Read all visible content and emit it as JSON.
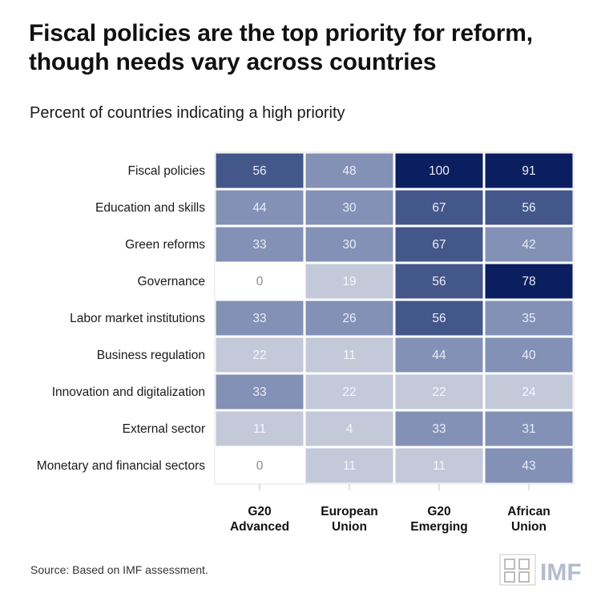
{
  "title": "Fiscal policies are the top priority for reform, though needs vary across countries",
  "subtitle": "Percent of countries indicating a high priority",
  "source": "Source: Based on IMF assessment.",
  "logo_text": "IMF",
  "chart_data": {
    "type": "heatmap",
    "rows": [
      "Fiscal policies",
      "Education and skills",
      "Green reforms",
      "Governance",
      "Labor market institutions",
      "Business regulation",
      "Innovation and digitalization",
      "External sector",
      "Monetary and financial sectors"
    ],
    "columns": [
      [
        "G20",
        "Advanced"
      ],
      [
        "European",
        "Union"
      ],
      [
        "G20",
        "Emerging"
      ],
      [
        "African",
        "Union"
      ]
    ],
    "values": [
      [
        56,
        48,
        100,
        91
      ],
      [
        44,
        30,
        67,
        56
      ],
      [
        33,
        30,
        67,
        42
      ],
      [
        0,
        19,
        56,
        78
      ],
      [
        33,
        26,
        56,
        35
      ],
      [
        22,
        11,
        44,
        40
      ],
      [
        33,
        22,
        22,
        24
      ],
      [
        11,
        4,
        33,
        31
      ],
      [
        0,
        11,
        11,
        43
      ]
    ],
    "value_range": [
      0,
      100
    ],
    "color_scale": {
      "zero": "#ffffff",
      "bins": [
        {
          "max": 25,
          "color": "#c3c9d9"
        },
        {
          "max": 50,
          "color": "#8391b6"
        },
        {
          "max": 70,
          "color": "#44578b"
        },
        {
          "max": 100,
          "color": "#0b1f60"
        }
      ]
    }
  }
}
